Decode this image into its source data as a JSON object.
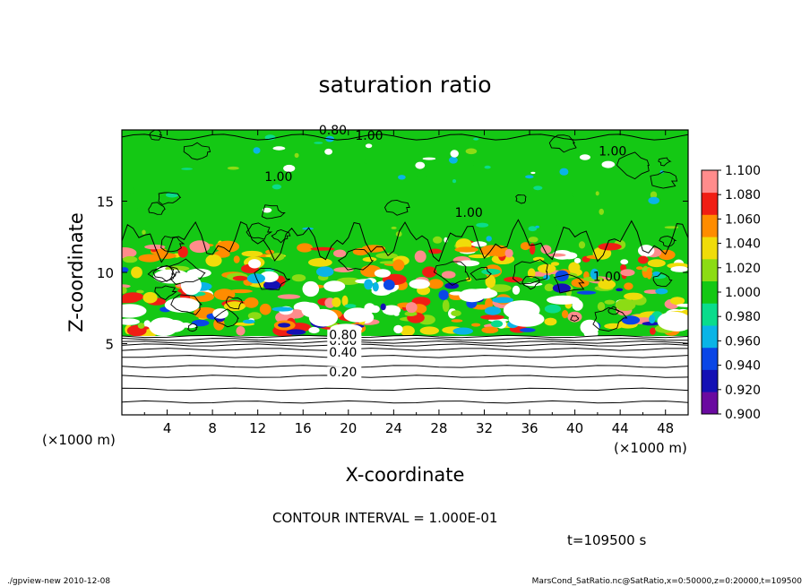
{
  "chart_data": {
    "type": "heatmap",
    "title": "saturation ratio",
    "xlabel": "X-coordinate",
    "ylabel": "Z-coordinate",
    "x_unit_left": "(×1000 m)",
    "x_unit_right": "(×1000 m)",
    "xlim": [
      0,
      50
    ],
    "ylim": [
      0,
      20
    ],
    "x_ticks": [
      4,
      8,
      12,
      16,
      20,
      24,
      28,
      32,
      36,
      40,
      44,
      48
    ],
    "y_ticks": [
      5,
      10,
      15
    ],
    "colorbar": {
      "levels": [
        "0.900",
        "0.920",
        "0.940",
        "0.960",
        "0.980",
        "1.000",
        "1.020",
        "1.040",
        "1.060",
        "1.080",
        "1.100"
      ],
      "colors": [
        "#6a0aa0",
        "#1410b4",
        "#0a46e6",
        "#0ab4e6",
        "#0adc8c",
        "#14c814",
        "#8cdc14",
        "#f0dc0a",
        "#ff8c00",
        "#f01e14",
        "#ff8c8c"
      ]
    },
    "contour_labels": [
      {
        "text": "0.20",
        "x": 18.3,
        "z": 2.7
      },
      {
        "text": "0.40",
        "x": 18.3,
        "z": 4.1
      },
      {
        "text": "0.60",
        "x": 18.3,
        "z": 4.9
      },
      {
        "text": "0.80",
        "x": 18.3,
        "z": 5.3
      },
      {
        "text": "0.80",
        "x": 17.4,
        "z": 19.7
      },
      {
        "text": "1.00",
        "x": 12.6,
        "z": 16.4
      },
      {
        "text": "1.00",
        "x": 20.6,
        "z": 19.3
      },
      {
        "text": "1.00",
        "x": 42.1,
        "z": 18.2
      },
      {
        "text": "1.00",
        "x": 29.4,
        "z": 13.9
      },
      {
        "text": "1.00",
        "x": 41.6,
        "z": 9.4
      }
    ],
    "contour_interval": "CONTOUR INTERVAL = 1.000E-01",
    "time_label": "t=109500 s",
    "footer_left": "./gpview-new  2010-12-08",
    "footer_right": "MarsCond_SatRatio.nc@SatRatio,x=0:50000,z=0:20000,t=109500"
  }
}
